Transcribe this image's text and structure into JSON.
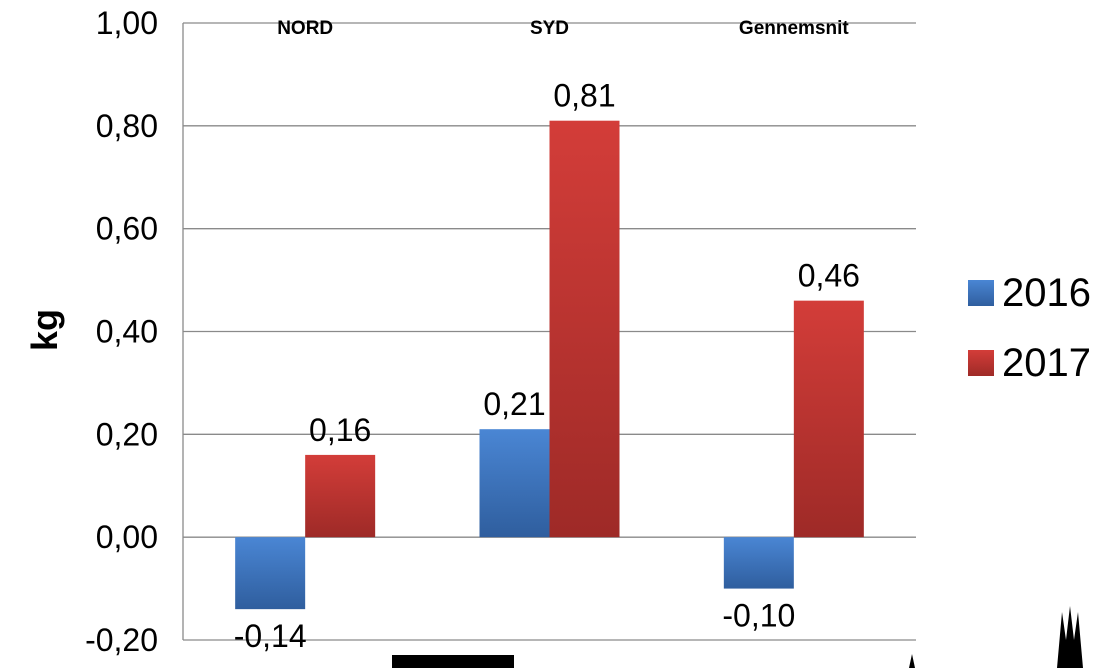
{
  "chart_data": {
    "type": "bar",
    "title": "",
    "xlabel": "",
    "ylabel": "kg",
    "categories": [
      "NORD",
      "SYD",
      "Gennemsnit"
    ],
    "series": [
      {
        "name": "2016",
        "values": [
          -0.14,
          0.21,
          -0.1
        ],
        "labels": [
          "-0,14",
          "0,21",
          "-0,10"
        ],
        "color": "#3a6fba"
      },
      {
        "name": "2017",
        "values": [
          0.16,
          0.81,
          0.46
        ],
        "labels": [
          "0,16",
          "0,81",
          "0,46"
        ],
        "color": "#c0332f"
      }
    ],
    "ylim": [
      -0.2,
      1.0
    ],
    "yticks": [
      -0.2,
      0.0,
      0.2,
      0.4,
      0.6,
      0.8,
      1.0
    ],
    "ytick_labels": [
      "-0,20",
      "0,00",
      "0,20",
      "0,40",
      "0,60",
      "0,80",
      "1,00"
    ],
    "category_label_position": "top",
    "grid": true,
    "legend": "right"
  }
}
